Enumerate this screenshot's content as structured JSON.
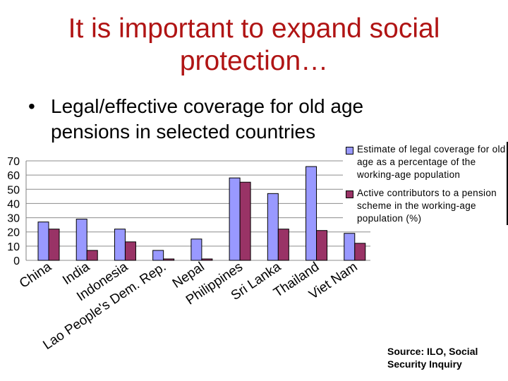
{
  "slide": {
    "title": "It is important to expand social protection…",
    "bullet_symbol": "•",
    "bullet": "Legal/effective coverage for old age pensions in selected countries",
    "source": "Source: ILO, Social Security Inquiry"
  },
  "chart_data": {
    "type": "bar",
    "title": "",
    "xlabel": "",
    "ylabel": "",
    "ylim": [
      0,
      70
    ],
    "yticks": [
      0,
      10,
      20,
      30,
      40,
      50,
      60,
      70
    ],
    "grid": true,
    "legend_position": "top-right",
    "categories": [
      "China",
      "India",
      "Indonesia",
      "Lao People's Dem. Rep.",
      "Nepal",
      "Philippines",
      "Sri Lanka",
      "Thailand",
      "Viet Nam"
    ],
    "series": [
      {
        "name": "Estimate of legal coverage for old age as a percentage of the working-age population",
        "color": "#9999ff",
        "values": [
          27,
          29,
          22,
          7,
          15,
          58,
          47,
          66,
          19
        ]
      },
      {
        "name": "Active contributors to a pension scheme in the working-age population (%)",
        "color": "#993366",
        "values": [
          22,
          7,
          13,
          1,
          1,
          55,
          22,
          21,
          12
        ]
      }
    ]
  }
}
